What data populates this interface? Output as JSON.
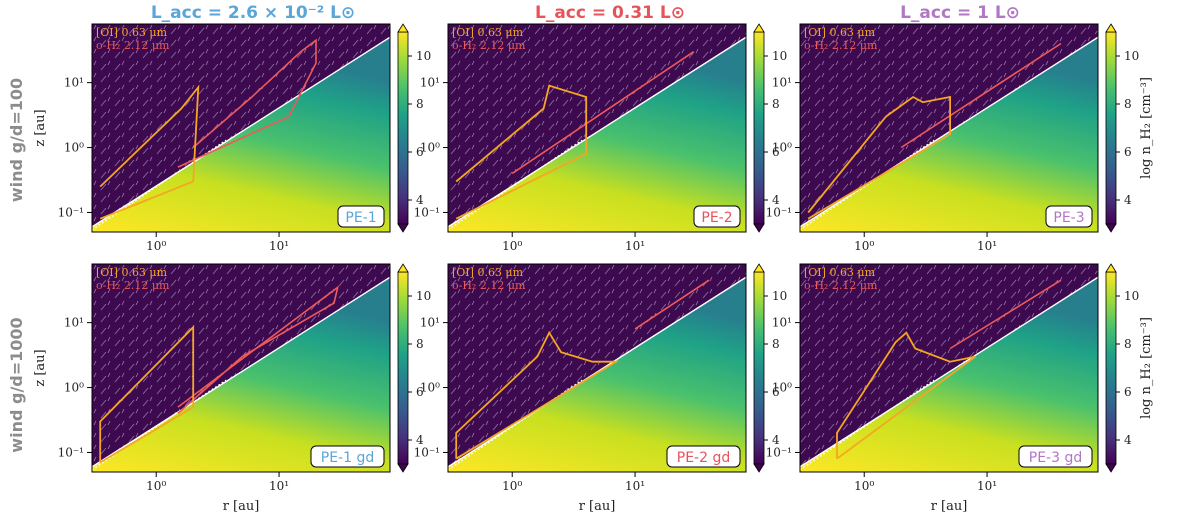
{
  "columns": [
    {
      "title": "L_acc = 2.6 × 10⁻² L⊙",
      "color": "#5aa6d9"
    },
    {
      "title": "L_acc = 0.31 L⊙",
      "color": "#e8535a"
    },
    {
      "title": "L_acc = 1 L⊙",
      "color": "#b277c4"
    }
  ],
  "rows": [
    {
      "title": "wind g/d=100"
    },
    {
      "title": "wind g/d=1000"
    }
  ],
  "legend": {
    "oi": "[OI] 0.63 μm",
    "h2": "o-H₂ 2.12 μm",
    "oi_color": "#f5a623",
    "h2_color": "#ee5a5a"
  },
  "colorbar": {
    "label": "log n_H₂ [cm⁻³]",
    "ticks": [
      "4",
      "6",
      "8",
      "10"
    ],
    "range": [
      3,
      11
    ],
    "cmap": "viridis"
  },
  "axes": {
    "xlabel": "r [au]",
    "ylabel": "z [au]",
    "xticks": [
      "10⁰",
      "10¹"
    ],
    "yticks": [
      "10⁻¹",
      "10⁰",
      "10¹"
    ],
    "xlim": [
      0.3,
      80
    ],
    "ylim": [
      0.05,
      80
    ],
    "log": true
  },
  "chart_data": {
    "type": "heatmap",
    "panels": [
      {
        "id": "PE-1",
        "label": "PE-1",
        "row": 0,
        "col": 0,
        "oi_contour": [
          [
            0.35,
            0.08
          ],
          [
            2.0,
            0.3
          ],
          [
            2.2,
            8.5
          ],
          [
            1.6,
            4.0
          ],
          [
            0.35,
            0.25
          ]
        ],
        "h2_contour": [
          [
            1.5,
            0.5
          ],
          [
            12,
            3
          ],
          [
            20,
            20
          ],
          [
            20,
            45
          ],
          [
            15,
            30
          ],
          [
            6,
            6
          ],
          [
            2,
            1.0
          ]
        ]
      },
      {
        "id": "PE-2",
        "label": "PE-2",
        "row": 0,
        "col": 1,
        "oi_contour": [
          [
            0.35,
            0.08
          ],
          [
            4,
            0.8
          ],
          [
            4,
            6
          ],
          [
            2,
            9
          ],
          [
            1.8,
            4
          ],
          [
            0.35,
            0.3
          ]
        ],
        "h2_contour": [
          [
            1,
            0.4
          ],
          [
            30,
            30
          ]
        ]
      },
      {
        "id": "PE-3",
        "label": "PE-3",
        "row": 0,
        "col": 2,
        "oi_contour": [
          [
            0.35,
            0.08
          ],
          [
            5,
            1.6
          ],
          [
            5,
            6
          ],
          [
            3,
            5
          ],
          [
            2.5,
            6
          ],
          [
            1.5,
            3
          ],
          [
            0.35,
            0.1
          ]
        ],
        "h2_contour": [
          [
            2,
            1
          ],
          [
            40,
            40
          ]
        ]
      },
      {
        "id": "PE-1 gd",
        "label": "PE-1 gd",
        "row": 1,
        "col": 0,
        "oi_contour": [
          [
            0.35,
            0.07
          ],
          [
            0.35,
            0.3
          ],
          [
            2.0,
            8.5
          ],
          [
            2.0,
            0.5
          ],
          [
            0.35,
            0.07
          ]
        ],
        "h2_contour": [
          [
            1.5,
            0.5
          ],
          [
            30,
            35
          ],
          [
            28,
            20
          ],
          [
            5,
            3
          ],
          [
            1.5,
            0.4
          ]
        ]
      },
      {
        "id": "PE-2 gd",
        "label": "PE-2 gd",
        "row": 1,
        "col": 1,
        "oi_contour": [
          [
            0.35,
            0.08
          ],
          [
            0.35,
            0.2
          ],
          [
            1.6,
            3
          ],
          [
            2,
            7
          ],
          [
            2.5,
            3.5
          ],
          [
            4.5,
            2.5
          ],
          [
            7,
            2.5
          ],
          [
            0.35,
            0.08
          ]
        ],
        "h2_contour": [
          [
            10,
            8
          ],
          [
            40,
            45
          ]
        ]
      },
      {
        "id": "PE-3 gd",
        "label": "PE-3 gd",
        "row": 1,
        "col": 2,
        "oi_contour": [
          [
            0.6,
            0.08
          ],
          [
            0.6,
            0.2
          ],
          [
            1.8,
            5
          ],
          [
            2.2,
            7
          ],
          [
            2.6,
            4
          ],
          [
            5,
            2.5
          ],
          [
            8,
            3
          ],
          [
            0.6,
            0.08
          ]
        ],
        "h2_contour": [
          [
            5,
            4
          ],
          [
            40,
            45
          ]
        ]
      }
    ]
  }
}
